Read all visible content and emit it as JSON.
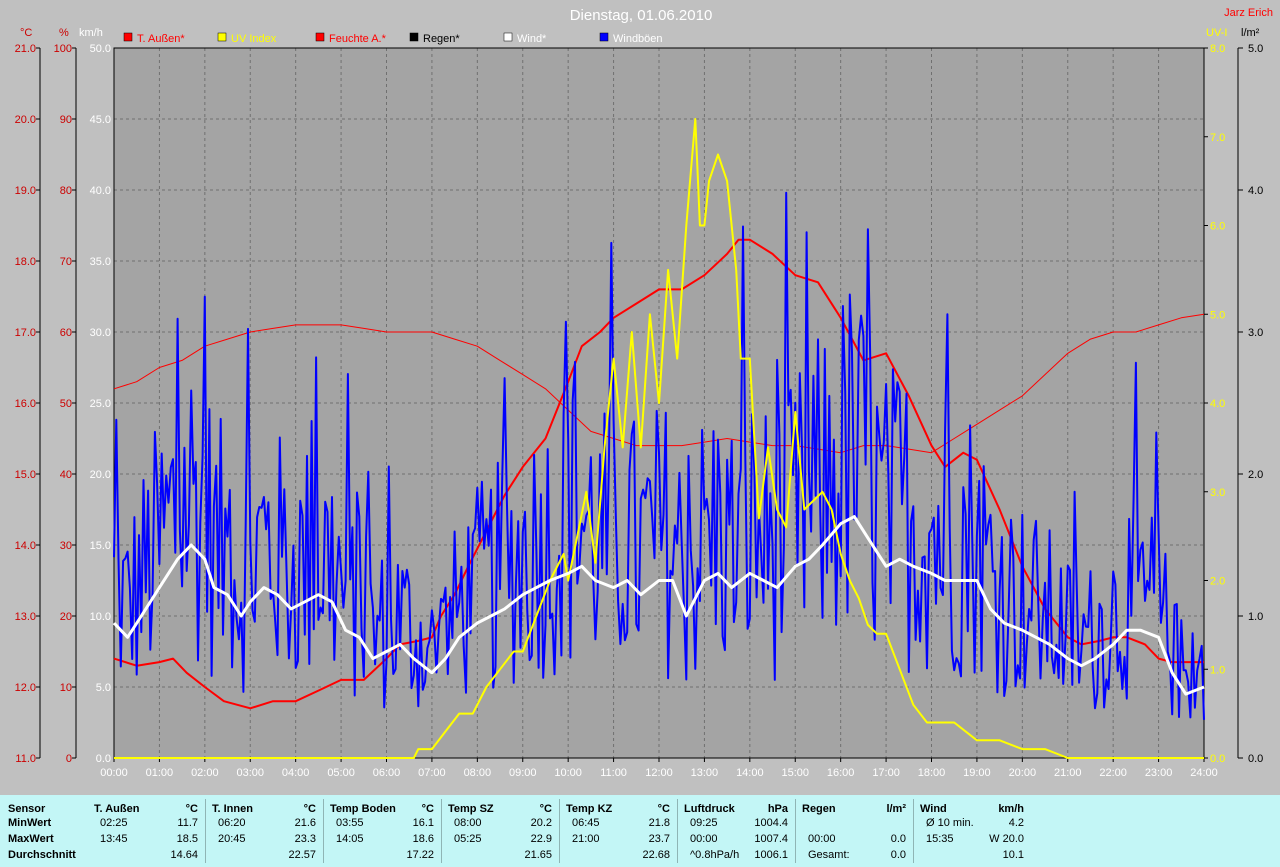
{
  "chart_data": {
    "type": "line",
    "title": "Dienstag, 01.06.2010",
    "author": "Jarz Erich",
    "legend": [
      {
        "label": "T. Außen*",
        "color": "#ff0000",
        "text_color": "#ff0000"
      },
      {
        "label": "UV Index",
        "color": "#ffff00",
        "text_color": "#ffff00"
      },
      {
        "label": "Feuchte A.*",
        "color": "#ff0000",
        "text_color": "#ff0000"
      },
      {
        "label": "Regen*",
        "color": "#000000",
        "text_color": "#000000"
      },
      {
        "label": "Wind*",
        "color": "#ffffff",
        "text_color": "#ffffff"
      },
      {
        "label": "Windböen",
        "color": "#0000ff",
        "text_color": "#ffffff"
      }
    ],
    "axes": {
      "temp": {
        "unit": "°C",
        "min": 11.0,
        "max": 21.0,
        "ticks": [
          "11.0",
          "12.0",
          "13.0",
          "14.0",
          "15.0",
          "16.0",
          "17.0",
          "18.0",
          "19.0",
          "20.0",
          "21.0"
        ],
        "color": "#cc0000"
      },
      "humidity": {
        "unit": "%",
        "min": 0,
        "max": 100,
        "ticks": [
          "0",
          "10",
          "20",
          "30",
          "40",
          "50",
          "60",
          "70",
          "80",
          "90",
          "100"
        ],
        "color": "#cc0000"
      },
      "wind": {
        "unit": "km/h",
        "min": 0,
        "max": 50,
        "ticks": [
          "0.0",
          "5.0",
          "10.0",
          "15.0",
          "20.0",
          "25.0",
          "30.0",
          "35.0",
          "40.0",
          "45.0",
          "50.0"
        ],
        "color": "#ffffff"
      },
      "uv": {
        "unit": "UV-I",
        "min": 0,
        "max": 8,
        "ticks": [
          "0.0",
          "1.0",
          "2.0",
          "3.0",
          "4.0",
          "5.0",
          "6.0",
          "7.0",
          "8.0"
        ],
        "color": "#ffff00"
      },
      "rain": {
        "unit": "l/m²",
        "min": 0,
        "max": 5,
        "ticks": [
          "0.0",
          "1.0",
          "2.0",
          "3.0",
          "4.0",
          "5.0"
        ],
        "color": "#000000"
      },
      "x": {
        "ticks": [
          "00:00",
          "01:00",
          "02:00",
          "03:00",
          "04:00",
          "05:00",
          "06:00",
          "07:00",
          "08:00",
          "09:00",
          "10:00",
          "11:00",
          "12:00",
          "13:00",
          "14:00",
          "15:00",
          "16:00",
          "17:00",
          "18:00",
          "19:00",
          "20:00",
          "21:00",
          "22:00",
          "23:00",
          "24:00"
        ]
      }
    },
    "grid": true,
    "series": [
      {
        "key": "temp",
        "name": "T. Außen*",
        "axis": "temp",
        "color": "#ff0000",
        "width": 2,
        "x": [
          0,
          0.5,
          1,
          1.3,
          1.6,
          2,
          2.42,
          3,
          3.5,
          4,
          4.5,
          5,
          5.5,
          6,
          6.3,
          6.7,
          7,
          7.2,
          7.5,
          7.8,
          8.2,
          8.6,
          9,
          9.5,
          10,
          10.3,
          10.7,
          11,
          11.5,
          12,
          12.5,
          13,
          13.5,
          13.75,
          14,
          14.5,
          15,
          15.5,
          16,
          16.5,
          17,
          17.5,
          18,
          18.3,
          18.7,
          19,
          19.5,
          20,
          20.5,
          21,
          21.3,
          21.7,
          22,
          22.3,
          22.7,
          23,
          23.3,
          23.7,
          24
        ],
        "y": [
          12.4,
          12.3,
          12.35,
          12.4,
          12.2,
          12.0,
          11.8,
          11.7,
          11.8,
          11.8,
          11.95,
          12.1,
          12.1,
          12.4,
          12.6,
          12.65,
          12.7,
          13.0,
          13.3,
          13.7,
          14.2,
          14.7,
          15.1,
          15.5,
          16.3,
          16.8,
          17.0,
          17.2,
          17.4,
          17.6,
          17.6,
          17.8,
          18.1,
          18.3,
          18.3,
          18.1,
          17.8,
          17.7,
          17.2,
          16.6,
          16.7,
          16.1,
          15.4,
          15.1,
          15.3,
          15.2,
          14.5,
          13.7,
          13.1,
          12.7,
          12.6,
          12.65,
          12.7,
          12.7,
          12.6,
          12.4,
          12.35,
          12.35,
          12.35
        ]
      },
      {
        "key": "hum",
        "name": "Feuchte A.*",
        "axis": "humidity",
        "color": "#ff0000",
        "width": 1,
        "x": [
          0,
          0.5,
          1,
          1.5,
          2,
          2.5,
          3,
          3.5,
          4,
          4.5,
          5,
          5.5,
          6,
          6.5,
          7,
          7.5,
          8,
          8.5,
          9,
          9.5,
          10,
          10.5,
          11,
          11.5,
          12,
          12.5,
          13,
          13.5,
          14,
          14.5,
          15,
          15.5,
          16,
          16.5,
          17,
          17.5,
          18,
          18.5,
          19,
          19.5,
          20,
          20.5,
          21,
          21.5,
          22,
          22.5,
          23,
          23.5,
          24
        ],
        "y": [
          52,
          53,
          55,
          56,
          58,
          59,
          60,
          60.5,
          61,
          61,
          61,
          60.5,
          60,
          60,
          60,
          59,
          58,
          56,
          54,
          52,
          49,
          46,
          45,
          44,
          44,
          44,
          44.5,
          45,
          44.5,
          44,
          44,
          43.5,
          43,
          44,
          44,
          43.5,
          43,
          45,
          47,
          49,
          51,
          54,
          57,
          59,
          60,
          60,
          61,
          62,
          62.5
        ]
      },
      {
        "key": "gust",
        "name": "Windböen",
        "axis": "wind",
        "color": "#0000ff",
        "width": 2,
        "generated": "gust"
      },
      {
        "key": "wind",
        "name": "Wind*",
        "axis": "wind",
        "color": "#ffffff",
        "width": 3,
        "x": [
          0,
          0.3,
          0.6,
          1,
          1.4,
          1.7,
          2,
          2.2,
          2.5,
          2.8,
          3,
          3.3,
          3.6,
          3.9,
          4.2,
          4.5,
          4.8,
          5.1,
          5.4,
          5.7,
          6,
          6.3,
          6.6,
          7,
          7.3,
          7.6,
          8,
          8.3,
          8.6,
          9,
          9.3,
          9.6,
          10,
          10.3,
          10.6,
          11,
          11.3,
          11.6,
          12,
          12.3,
          12.6,
          13,
          13.3,
          13.6,
          14,
          14.3,
          14.6,
          15,
          15.3,
          15.6,
          16,
          16.3,
          16.6,
          17,
          17.3,
          17.6,
          18,
          18.3,
          18.6,
          19,
          19.3,
          19.6,
          20,
          20.3,
          20.6,
          21,
          21.3,
          21.6,
          22,
          22.3,
          22.6,
          23,
          23.3,
          23.6,
          24
        ],
        "y": [
          9.5,
          8.5,
          10,
          12,
          14,
          15,
          14,
          12,
          11.5,
          10,
          11,
          12,
          11.5,
          10.5,
          11,
          11.5,
          11,
          9,
          8.5,
          7,
          7.5,
          8,
          7,
          6,
          7,
          8.5,
          9.5,
          10,
          10.5,
          11.5,
          12,
          12.5,
          13,
          13.5,
          12.5,
          12,
          12.5,
          11.5,
          12.5,
          12.5,
          10,
          12.5,
          13,
          12,
          13,
          12.5,
          12,
          13.5,
          14,
          15,
          16.5,
          17,
          15.5,
          13.5,
          14,
          13.5,
          13,
          12.5,
          12.5,
          12.5,
          10.5,
          9.5,
          9,
          8.5,
          8,
          7,
          6.5,
          7,
          8,
          9,
          9,
          8.5,
          6,
          4.5,
          5
        ]
      },
      {
        "key": "uv",
        "name": "UV Index",
        "axis": "uv",
        "color": "#ffff00",
        "width": 2,
        "x": [
          0,
          6.6,
          6.7,
          7,
          7.3,
          7.6,
          7.9,
          8.2,
          8.5,
          8.8,
          9,
          9.3,
          9.6,
          9.9,
          10,
          10.2,
          10.4,
          10.6,
          10.8,
          11,
          11.2,
          11.4,
          11.6,
          11.8,
          12,
          12.2,
          12.4,
          12.6,
          12.8,
          12.9,
          13,
          13.1,
          13.3,
          13.5,
          13.7,
          13.8,
          14,
          14.2,
          14.4,
          14.6,
          14.8,
          15,
          15.2,
          15.4,
          15.6,
          15.8,
          16,
          16.2,
          16.4,
          16.6,
          16.8,
          17,
          17.3,
          17.6,
          17.9,
          18.2,
          18.5,
          19,
          19.5,
          20,
          20.5,
          21,
          24
        ],
        "y": [
          0,
          0,
          0.1,
          0.1,
          0.3,
          0.5,
          0.5,
          0.8,
          1.0,
          1.2,
          1.2,
          1.6,
          2.0,
          2.3,
          2.0,
          2.5,
          3.0,
          2.2,
          3.5,
          4.5,
          3.5,
          4.8,
          3.5,
          5.0,
          4.0,
          5.5,
          4.5,
          6.0,
          7.2,
          6.0,
          6.0,
          6.5,
          6.8,
          6.5,
          5.5,
          4.5,
          4.5,
          2.7,
          3.5,
          2.8,
          2.6,
          3.9,
          2.8,
          2.9,
          3.0,
          2.8,
          2.3,
          2.0,
          1.8,
          1.5,
          1.4,
          1.4,
          1.0,
          0.6,
          0.4,
          0.4,
          0.4,
          0.2,
          0.2,
          0.1,
          0.1,
          0,
          0
        ]
      }
    ]
  },
  "stats": {
    "row_labels": [
      "Sensor",
      "MinWert",
      "MaxWert",
      "Durchschnitt"
    ],
    "columns": [
      {
        "header": "T. Außen",
        "unit": "°C",
        "min": [
          "02:25",
          "11.7"
        ],
        "max": [
          "13:45",
          "18.5"
        ],
        "avg": [
          "",
          "14.64"
        ]
      },
      {
        "header": "T. Innen",
        "unit": "°C",
        "min": [
          "06:20",
          "21.6"
        ],
        "max": [
          "20:45",
          "23.3"
        ],
        "avg": [
          "",
          "22.57"
        ]
      },
      {
        "header": "Temp Boden",
        "unit": "°C",
        "min": [
          "03:55",
          "16.1"
        ],
        "max": [
          "14:05",
          "18.6"
        ],
        "avg": [
          "",
          "17.22"
        ]
      },
      {
        "header": "Temp SZ",
        "unit": "°C",
        "min": [
          "08:00",
          "20.2"
        ],
        "max": [
          "05:25",
          "22.9"
        ],
        "avg": [
          "",
          "21.65"
        ]
      },
      {
        "header": "Temp KZ",
        "unit": "°C",
        "min": [
          "06:45",
          "21.8"
        ],
        "max": [
          "21:00",
          "23.7"
        ],
        "avg": [
          "",
          "22.68"
        ]
      },
      {
        "header": "Luftdruck",
        "unit": "hPa",
        "min": [
          "09:25",
          "1004.4"
        ],
        "max": [
          "00:00",
          "1007.4"
        ],
        "avg": [
          "^0.8hPa/h",
          "1006.1"
        ]
      },
      {
        "header": "Regen",
        "unit": "l/m²",
        "min": [
          "",
          ""
        ],
        "max": [
          "00:00",
          "0.0"
        ],
        "avg": [
          "Gesamt:",
          "0.0"
        ]
      },
      {
        "header": "Wind",
        "unit": "km/h",
        "min": [
          "Ø 10 min.",
          "4.2"
        ],
        "max": [
          "15:35",
          "W 20.0"
        ],
        "avg": [
          "",
          "10.1"
        ]
      }
    ]
  }
}
